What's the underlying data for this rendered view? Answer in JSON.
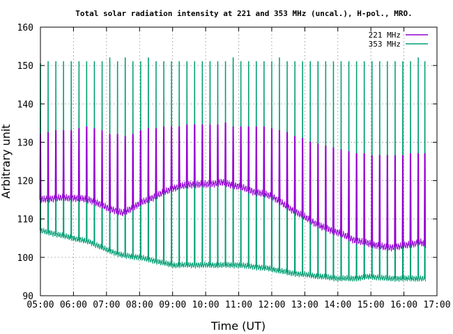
{
  "chart_data": {
    "type": "line",
    "title": "Total solar radiation intensity at 221 and 353 MHz (uncal.), H-pol., MRO.",
    "xlabel": "Time (UT)",
    "ylabel": "Arbitrary unit",
    "xlim": [
      "05:00",
      "17:00"
    ],
    "ylim": [
      90,
      160
    ],
    "x_ticks": [
      "05:00",
      "06:00",
      "07:00",
      "08:00",
      "09:00",
      "10:00",
      "11:00",
      "12:00",
      "13:00",
      "14:00",
      "15:00",
      "16:00",
      "17:00"
    ],
    "y_ticks": [
      90,
      100,
      110,
      120,
      130,
      140,
      150,
      160
    ],
    "grid": true,
    "legend_position": "top-right",
    "calibration_spike_times": [
      "05:00",
      "05:14",
      "05:28",
      "05:42",
      "05:56",
      "06:10",
      "06:24",
      "06:38",
      "06:52",
      "07:06",
      "07:20",
      "07:34",
      "07:48",
      "08:02",
      "08:16",
      "08:30",
      "08:44",
      "08:58",
      "09:12",
      "09:26",
      "09:40",
      "09:54",
      "10:08",
      "10:22",
      "10:36",
      "10:50",
      "11:04",
      "11:18",
      "11:32",
      "11:46",
      "12:00",
      "12:14",
      "12:28",
      "12:42",
      "12:56",
      "13:10",
      "13:24",
      "13:38",
      "13:52",
      "14:06",
      "14:20",
      "14:34",
      "14:48",
      "15:02",
      "15:16",
      "15:30",
      "15:44",
      "15:58",
      "16:12",
      "16:26",
      "16:38"
    ],
    "series": [
      {
        "name": "221 MHz",
        "color": "#9400d3",
        "baseline_x": [
          "05:00",
          "05:30",
          "06:00",
          "06:30",
          "07:00",
          "07:30",
          "08:00",
          "08:30",
          "09:00",
          "09:30",
          "10:00",
          "10:30",
          "11:00",
          "11:30",
          "12:00",
          "12:30",
          "13:00",
          "13:30",
          "14:00",
          "14:30",
          "15:00",
          "15:30",
          "16:00",
          "16:30",
          "16:40"
        ],
        "baseline_y": [
          115,
          115.5,
          115.5,
          115,
          113,
          111.5,
          114,
          116,
          118,
          119,
          119,
          119.5,
          118.5,
          117,
          116,
          113,
          110.5,
          108,
          106.5,
          104.5,
          103.5,
          102.5,
          103,
          104,
          103
        ],
        "spike_peaks": [
          132,
          132.5,
          133,
          133,
          133,
          133.5,
          134,
          133.5,
          133,
          132,
          132,
          131.5,
          132,
          133,
          133.5,
          133.5,
          134,
          134,
          134,
          134.5,
          134.5,
          134.5,
          134.5,
          134.5,
          135,
          134,
          134,
          134,
          134,
          134,
          133.5,
          133,
          132.5,
          131.5,
          131,
          130,
          129.5,
          129,
          128.5,
          128,
          127.5,
          127,
          127,
          126.5,
          126.5,
          126.5,
          126.5,
          126.5,
          127,
          127,
          127
        ]
      },
      {
        "name": "353 MHz",
        "color": "#009e73",
        "baseline_x": [
          "05:00",
          "05:30",
          "06:00",
          "06:30",
          "07:00",
          "07:30",
          "08:00",
          "08:30",
          "09:00",
          "09:30",
          "10:00",
          "10:30",
          "11:00",
          "11:30",
          "12:00",
          "12:30",
          "13:00",
          "13:30",
          "14:00",
          "14:30",
          "15:00",
          "15:30",
          "16:00",
          "16:30",
          "16:40"
        ],
        "baseline_y": [
          107,
          106,
          105,
          104,
          102,
          100.5,
          100,
          99,
          98,
          98,
          98,
          98,
          98,
          97.5,
          97,
          96,
          95.5,
          95,
          94.5,
          94.5,
          95,
          94.5,
          94.5,
          94.5,
          94.5
        ],
        "spike_peaks": [
          150.5,
          151,
          151,
          151,
          151,
          151,
          151,
          151,
          151,
          152,
          151,
          152,
          151,
          151,
          152,
          151,
          151,
          151,
          151,
          151,
          151,
          151,
          151,
          151,
          151,
          152,
          151,
          151,
          151,
          151,
          151,
          152,
          151,
          151,
          151,
          151,
          151,
          151,
          151,
          151,
          151,
          151,
          151,
          151,
          151,
          151,
          151,
          151,
          151,
          152,
          151
        ]
      }
    ]
  }
}
